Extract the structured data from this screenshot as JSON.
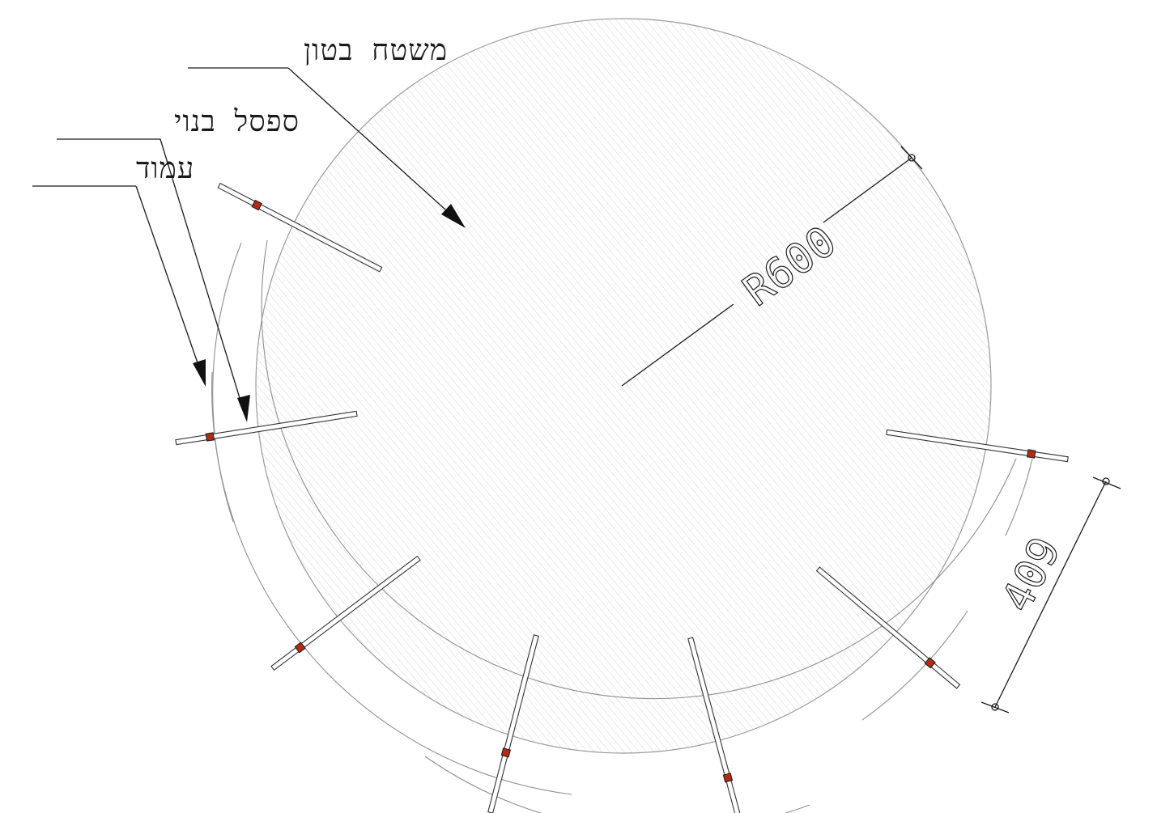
{
  "labels": {
    "concrete_area": "משטח בטון",
    "built_bench": "ספסל בנוי",
    "column": "עמוד"
  },
  "dimensions": {
    "radius": "R600",
    "spacing": "409"
  },
  "colors": {
    "line": "#1a1a1a",
    "circle_outline": "#9a9a9a",
    "hatch": "#cfcfcf",
    "column_fill": "#b52a10"
  }
}
